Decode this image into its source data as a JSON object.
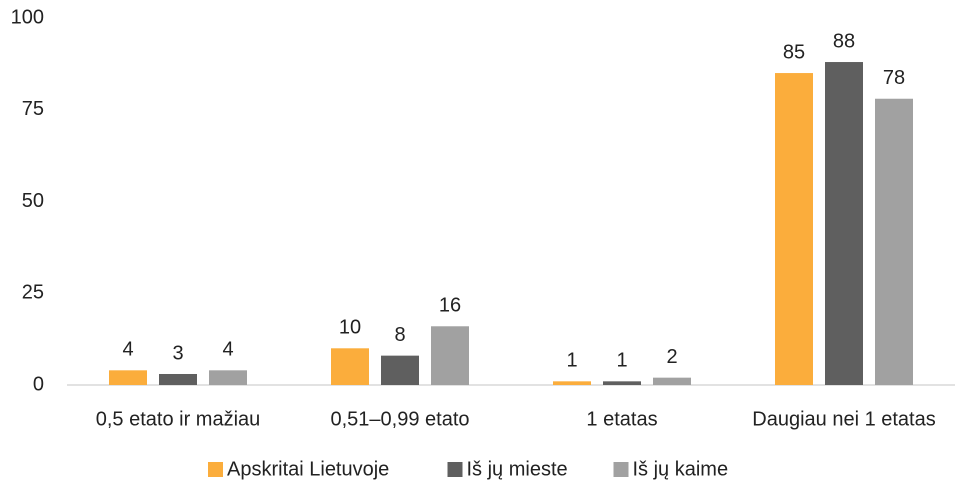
{
  "chart_data": {
    "type": "bar",
    "categories": [
      "0,5 etato ir mažiau",
      "0,51–0,99 etato",
      "1 etatas",
      "Daugiau nei 1 etatas"
    ],
    "series": [
      {
        "name": "Apskritai Lietuvoje",
        "color": "#fbad3c",
        "values": [
          4,
          10,
          1,
          85
        ]
      },
      {
        "name": "Iš jų mieste",
        "color": "#5f5f5f",
        "values": [
          3,
          8,
          1,
          88
        ]
      },
      {
        "name": "Iš jų kaime",
        "color": "#a1a1a1",
        "values": [
          4,
          16,
          2,
          78
        ]
      }
    ],
    "ylim": [
      0,
      100
    ],
    "yticks": [
      0,
      25,
      50,
      75,
      100
    ],
    "grid": false,
    "legend": "bottom"
  }
}
